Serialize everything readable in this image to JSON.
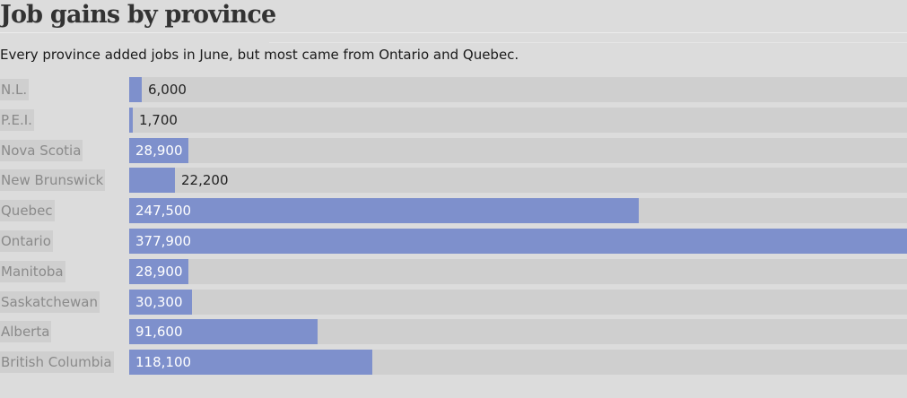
{
  "header": {
    "title": "Job gains by province",
    "subtitle": "Every province added jobs in June, but most came from Ontario and Quebec."
  },
  "colors": {
    "bar": "#7e90cc",
    "track": "#cfcfcf",
    "background": "#dcdcdc"
  },
  "chart_data": {
    "type": "bar",
    "orientation": "horizontal",
    "title": "Job gains by province",
    "subtitle": "Every province added jobs in June, but most came from Ontario and Quebec.",
    "categories": [
      "N.L.",
      "P.E.I.",
      "Nova Scotia",
      "New Brunswick",
      "Quebec",
      "Ontario",
      "Manitoba",
      "Saskatchewan",
      "Alberta",
      "British Columbia"
    ],
    "values": [
      6000,
      1700,
      28900,
      22200,
      247500,
      377900,
      28900,
      30300,
      91600,
      118100
    ],
    "value_labels": [
      "6,000",
      "1,700",
      "28,900",
      "22,200",
      "247,500",
      "377,900",
      "28,900",
      "30,300",
      "91,600",
      "118,100"
    ],
    "xlim": [
      0,
      377900
    ],
    "grid": false,
    "legend": "none"
  }
}
